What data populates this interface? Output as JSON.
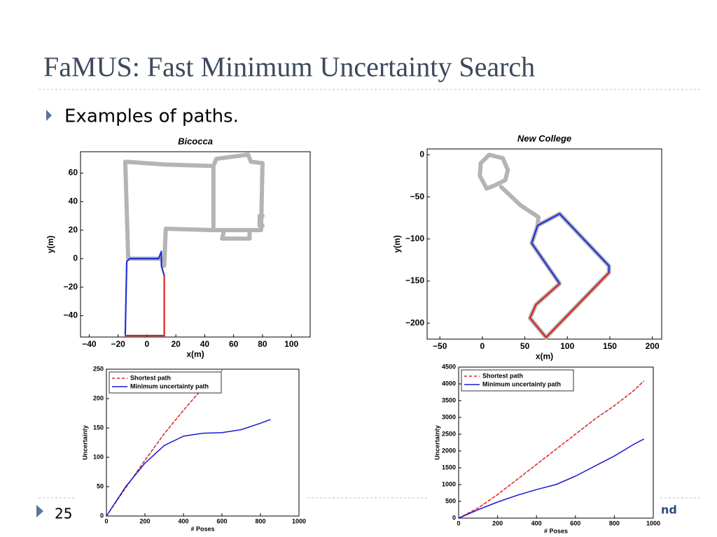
{
  "title": "FaMUS: Fast Minimum Uncertainty Search",
  "bullets": [
    "Examples of paths."
  ],
  "slide_number": "25",
  "footer": "nd",
  "charts": [
    {
      "type": "path",
      "title": "Bicocca",
      "xlabel": "x(m)",
      "ylabel": "y(m)",
      "xlim": [
        -46,
        113
      ],
      "ylim": [
        -55,
        75
      ],
      "xticks": [
        {
          "value": -40,
          "label": "−40"
        },
        {
          "value": -20,
          "label": "−20"
        },
        0,
        20,
        40,
        60,
        80,
        100
      ],
      "yticks": [
        {
          "value": -40,
          "label": "−40"
        },
        {
          "value": -20,
          "label": "−20"
        },
        0,
        20,
        40,
        60
      ],
      "series": [
        {
          "color": "#b4b4b4",
          "x": [
            -13,
            -15,
            12,
            46,
            48,
            70,
            72,
            80,
            79,
            46,
            46,
            null,
            46,
            13,
            12,
            10,
            -13,
            null,
            53,
            52,
            71,
            71,
            null,
            80,
            78,
            78,
            80
          ],
          "values": [
            0,
            68,
            66,
            65,
            70,
            73,
            68,
            67,
            20,
            20,
            65,
            null,
            20,
            21,
            -5,
            0,
            0,
            null,
            18,
            14,
            14,
            18,
            null,
            30,
            30,
            23,
            23
          ]
        },
        {
          "color": "#1f2fd8",
          "x": [
            -15,
            -14,
            -12,
            8,
            10,
            10,
            12
          ],
          "values": [
            -53,
            -2,
            0,
            0,
            5,
            -5,
            -12
          ]
        },
        {
          "color": "#d82020",
          "x": [
            12,
            12,
            -15
          ],
          "values": [
            -12,
            -54,
            -54
          ]
        }
      ]
    },
    {
      "type": "path",
      "title": "New College",
      "xlabel": "x(m)",
      "ylabel": "y(m)",
      "xlim": [
        -65,
        211
      ],
      "ylim": [
        -219,
        7
      ],
      "xticks": [
        {
          "value": -50,
          "label": "−50"
        },
        0,
        50,
        100,
        150,
        200
      ],
      "yticks": [
        {
          "value": -200,
          "label": "−200"
        },
        {
          "value": -150,
          "label": "−150"
        },
        {
          "value": -100,
          "label": "−100"
        },
        {
          "value": -50,
          "label": "−50"
        },
        0
      ],
      "series": [
        {
          "color": "#b4b4b4",
          "x": [
            13,
            27,
            30,
            24,
            8,
            -2,
            -3,
            5,
            13,
            null,
            22,
            45,
            66,
            65,
            91,
            149,
            149,
            75,
            56,
            63,
            91,
            58,
            65
          ],
          "values": [
            -37,
            -30,
            -18,
            -4,
            0,
            -10,
            -25,
            -40,
            -37,
            null,
            -38,
            -60,
            -74,
            -84,
            -70,
            -132,
            -140,
            -217,
            -194,
            -178,
            -153,
            -105,
            -84
          ]
        },
        {
          "color": "#1f2fd8",
          "x": [
            91,
            65,
            91,
            149,
            149,
            null,
            65,
            58,
            91
          ],
          "values": [
            -70,
            -84,
            -70,
            -132,
            -140,
            null,
            -84,
            -105,
            -153
          ]
        },
        {
          "color": "#d82020",
          "x": [
            149,
            75,
            56,
            63,
            91
          ],
          "values": [
            -140,
            -217,
            -194,
            -178,
            -153
          ]
        }
      ]
    },
    {
      "type": "line",
      "xlabel": "# Poses",
      "ylabel": "Uncertainty",
      "legend": "upper left",
      "xlim": [
        0,
        1000
      ],
      "ylim": [
        0,
        250
      ],
      "xticks": [
        0,
        200,
        400,
        600,
        800,
        1000
      ],
      "yticks": [
        0,
        50,
        100,
        150,
        200,
        250
      ],
      "x": [
        0,
        100,
        200,
        300,
        400,
        500,
        600,
        700,
        800,
        850
      ],
      "series": [
        {
          "name": "Shortest path",
          "color": "#e02020",
          "linestyle": "dashed",
          "values": [
            0,
            48,
            95,
            140,
            180,
            218,
            248,
            null,
            null,
            null
          ]
        },
        {
          "name": "Minimum uncertainty path",
          "color": "#1a1ad0",
          "linestyle": "solid",
          "values": [
            0,
            50,
            90,
            120,
            136,
            141,
            142,
            147,
            158,
            164
          ]
        }
      ]
    },
    {
      "type": "line",
      "xlabel": "# Poses",
      "ylabel": "Uncertainty",
      "legend": "upper left",
      "xlim": [
        0,
        1000
      ],
      "ylim": [
        0,
        4500
      ],
      "xticks": [
        0,
        200,
        400,
        600,
        800,
        1000
      ],
      "yticks": [
        0,
        500,
        1000,
        1500,
        2000,
        2500,
        3000,
        3500,
        4000,
        4500
      ],
      "x": [
        0,
        100,
        200,
        300,
        400,
        500,
        600,
        700,
        800,
        900,
        950
      ],
      "series": [
        {
          "name": "Shortest path",
          "color": "#e02020",
          "linestyle": "dashed",
          "values": [
            0,
            300,
            700,
            1150,
            1600,
            2050,
            2500,
            2950,
            3350,
            3800,
            4080
          ]
        },
        {
          "name": "Minimum uncertainty path",
          "color": "#1a1ad0",
          "linestyle": "solid",
          "values": [
            0,
            250,
            480,
            680,
            850,
            1000,
            1250,
            1550,
            1850,
            2200,
            2350
          ]
        }
      ]
    }
  ]
}
